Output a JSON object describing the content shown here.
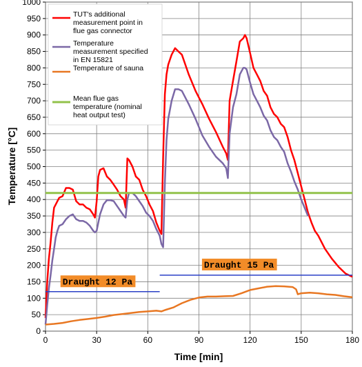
{
  "chart_data": {
    "type": "line",
    "xlabel": "Time [min]",
    "ylabel": "Temperature [°C]",
    "xlim": [
      0,
      180
    ],
    "ylim": [
      0,
      1000
    ],
    "x_ticks": [
      0,
      30,
      60,
      90,
      120,
      150,
      180
    ],
    "y_ticks": [
      0,
      50,
      100,
      150,
      200,
      250,
      300,
      350,
      400,
      450,
      500,
      550,
      600,
      650,
      700,
      750,
      800,
      850,
      900,
      950,
      1000
    ],
    "grid": true,
    "legend_position": "top-left",
    "series": [
      {
        "name": "TUT's additional measurement point in flue gas connector",
        "color": "#ff0000",
        "x": [
          0,
          1,
          2,
          3,
          4,
          5,
          6,
          7,
          8,
          10,
          12,
          14,
          16,
          18,
          20,
          22,
          24,
          26,
          28,
          29,
          30,
          31,
          32,
          34,
          36,
          38,
          40,
          42,
          44,
          46,
          47,
          48,
          49,
          51,
          53,
          55,
          57,
          59,
          61,
          63,
          65,
          67,
          68,
          69,
          70,
          71,
          72,
          74,
          76,
          78,
          80,
          84,
          88,
          92,
          96,
          100,
          104,
          106,
          107,
          108,
          110,
          112,
          114,
          116,
          117,
          118,
          120,
          122,
          124,
          126,
          128,
          130,
          132,
          134,
          136,
          138,
          140,
          142,
          144,
          146,
          148,
          150,
          152,
          154,
          156,
          158,
          160,
          164,
          168,
          172,
          176,
          180
        ],
        "values": [
          40,
          150,
          220,
          270,
          330,
          375,
          385,
          395,
          405,
          410,
          435,
          435,
          430,
          395,
          385,
          385,
          375,
          370,
          355,
          345,
          395,
          470,
          490,
          495,
          470,
          460,
          445,
          430,
          410,
          400,
          375,
          525,
          520,
          500,
          470,
          460,
          430,
          410,
          385,
          365,
          330,
          305,
          295,
          530,
          720,
          780,
          810,
          840,
          860,
          850,
          840,
          780,
          730,
          690,
          645,
          605,
          560,
          540,
          520,
          700,
          760,
          820,
          880,
          890,
          900,
          890,
          845,
          800,
          780,
          760,
          730,
          715,
          680,
          660,
          650,
          630,
          620,
          590,
          550,
          520,
          480,
          440,
          400,
          360,
          330,
          305,
          290,
          250,
          220,
          195,
          175,
          165
        ]
      },
      {
        "name": "Temperature measurement specified in EN 15821",
        "color": "#7b68a6",
        "x": [
          0,
          1,
          2,
          3,
          4,
          5,
          6,
          7,
          8,
          10,
          12,
          14,
          16,
          18,
          20,
          22,
          24,
          26,
          28,
          29,
          30,
          31,
          32,
          34,
          36,
          38,
          40,
          42,
          44,
          46,
          47,
          48,
          49,
          51,
          53,
          55,
          57,
          59,
          61,
          63,
          65,
          67,
          68,
          69,
          70,
          71,
          72,
          74,
          76,
          78,
          80,
          84,
          88,
          92,
          96,
          100,
          104,
          106,
          107,
          108,
          110,
          112,
          114,
          116,
          117,
          118,
          120,
          122,
          124,
          126,
          128,
          130,
          132,
          134,
          136,
          138,
          140,
          142,
          144,
          146,
          148,
          150,
          152,
          154
        ],
        "values": [
          20,
          80,
          130,
          170,
          215,
          250,
          285,
          305,
          320,
          325,
          340,
          350,
          355,
          340,
          335,
          335,
          330,
          320,
          305,
          300,
          305,
          330,
          355,
          385,
          398,
          398,
          395,
          380,
          365,
          350,
          345,
          400,
          420,
          420,
          410,
          395,
          380,
          360,
          350,
          335,
          310,
          290,
          265,
          255,
          450,
          580,
          645,
          700,
          735,
          735,
          730,
          690,
          645,
          595,
          560,
          530,
          510,
          495,
          465,
          600,
          680,
          720,
          780,
          800,
          800,
          795,
          755,
          720,
          700,
          680,
          655,
          640,
          610,
          590,
          580,
          560,
          545,
          510,
          485,
          455,
          430,
          400,
          375,
          350
        ]
      },
      {
        "name": "Temperature of sauna",
        "color": "#e87722",
        "x": [
          0,
          5,
          10,
          15,
          20,
          25,
          30,
          35,
          40,
          45,
          50,
          55,
          60,
          65,
          68,
          70,
          75,
          80,
          85,
          90,
          95,
          100,
          105,
          110,
          115,
          120,
          125,
          130,
          135,
          140,
          145,
          147,
          148,
          150,
          155,
          160,
          165,
          170,
          175,
          180
        ],
        "values": [
          20,
          22,
          25,
          30,
          34,
          37,
          40,
          44,
          49,
          52,
          55,
          58,
          60,
          62,
          60,
          64,
          72,
          85,
          95,
          102,
          105,
          105,
          106,
          107,
          115,
          125,
          130,
          135,
          137,
          136,
          134,
          127,
          112,
          115,
          117,
          115,
          112,
          110,
          106,
          103
        ]
      },
      {
        "name": "Mean flue gas temperature (nominal heat output test)",
        "color": "#92c24a",
        "x": [
          0,
          180
        ],
        "values": [
          420,
          420
        ]
      }
    ],
    "annotations": [
      {
        "text": "Draught 12 Pa",
        "x": 10,
        "y": 142,
        "line_x": [
          0,
          67
        ],
        "line_y": 120
      },
      {
        "text": "Draught 15 Pa",
        "x": 93,
        "y": 193,
        "line_x": [
          67,
          180
        ],
        "line_y": 170
      }
    ],
    "annotation_style": {
      "label_background": "#f28c28",
      "line_color": "#2a3fc6"
    }
  }
}
